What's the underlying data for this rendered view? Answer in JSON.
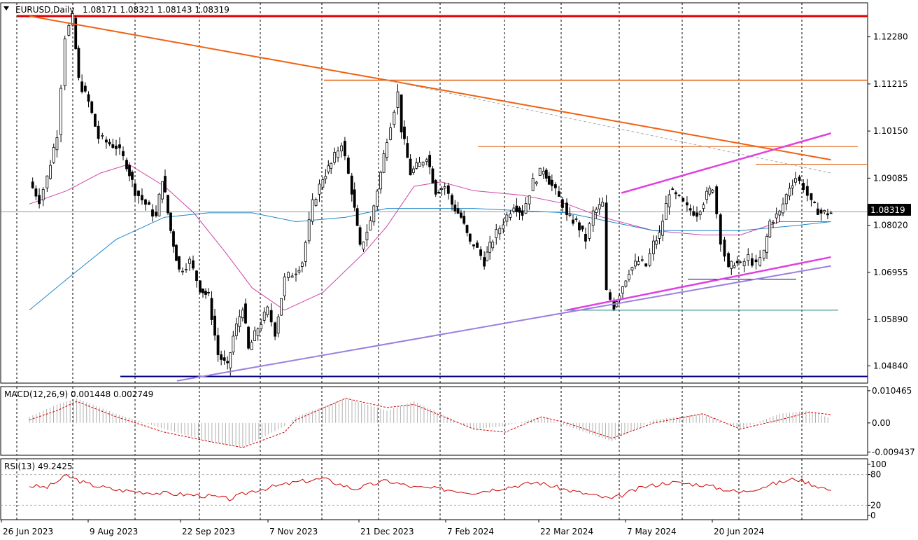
{
  "chart_data": [
    {
      "type": "candlestick",
      "panel": "price",
      "symbol": "EURUSD,Daily",
      "ohlc_header": "1.08171 1.08321 1.08143 1.08319",
      "current_price": "1.08319",
      "y_ticks": [
        "1.12280",
        "1.11215",
        "1.10150",
        "1.09085",
        "1.08020",
        "1.06955",
        "1.05890",
        "1.04840"
      ],
      "ylim": [
        1.0445,
        1.1305
      ],
      "x_labels": [
        "26 Jun 2023",
        "9 Aug 2023",
        "22 Sep 2023",
        "7 Nov 2023",
        "21 Dec 2023",
        "7 Feb 2024",
        "22 Mar 2024",
        "7 May 2024",
        "20 Jun 2024"
      ],
      "grid": "vertical dashed",
      "path_points": [
        [
          "26 Jun 2023",
          1.09
        ],
        [
          "1 Jul 2023",
          1.086
        ],
        [
          "5 Jul 2023",
          1.091
        ],
        [
          "10 Jul 2023",
          1.101
        ],
        [
          "14 Jul 2023",
          1.123
        ],
        [
          "18 Jul 2023",
          1.127
        ],
        [
          "21 Jul 2023",
          1.113
        ],
        [
          "26 Jul 2023",
          1.108
        ],
        [
          "31 Jul 2023",
          1.1
        ],
        [
          "4 Aug 2023",
          1.099
        ],
        [
          "9 Aug 2023",
          1.098
        ],
        [
          "14 Aug 2023",
          1.094
        ],
        [
          "18 Aug 2023",
          1.088
        ],
        [
          "23 Aug 2023",
          1.085
        ],
        [
          "28 Aug 2023",
          1.082
        ],
        [
          "31 Aug 2023",
          1.091
        ],
        [
          "4 Sep 2023",
          1.079
        ],
        [
          "8 Sep 2023",
          1.07
        ],
        [
          "13 Sep 2023",
          1.072
        ],
        [
          "18 Sep 2023",
          1.066
        ],
        [
          "22 Sep 2023",
          1.064
        ],
        [
          "27 Sep 2023",
          1.051
        ],
        [
          "2 Oct 2023",
          1.048
        ],
        [
          "5 Oct 2023",
          1.055
        ],
        [
          "10 Oct 2023",
          1.062
        ],
        [
          "13 Oct 2023",
          1.052
        ],
        [
          "18 Oct 2023",
          1.057
        ],
        [
          "23 Oct 2023",
          1.061
        ],
        [
          "27 Oct 2023",
          1.056
        ],
        [
          "1 Nov 2023",
          1.068
        ],
        [
          "7 Nov 2023",
          1.07
        ],
        [
          "10 Nov 2023",
          1.072
        ],
        [
          "15 Nov 2023",
          1.085
        ],
        [
          "20 Nov 2023",
          1.091
        ],
        [
          "24 Nov 2023",
          1.094
        ],
        [
          "29 Nov 2023",
          1.099
        ],
        [
          "4 Dec 2023",
          1.088
        ],
        [
          "8 Dec 2023",
          1.075
        ],
        [
          "13 Dec 2023",
          1.081
        ],
        [
          "18 Dec 2023",
          1.092
        ],
        [
          "21 Dec 2023",
          1.1
        ],
        [
          "27 Dec 2023",
          1.11
        ],
        [
          "29 Dec 2023",
          1.102
        ],
        [
          "3 Jan 2024",
          1.092
        ],
        [
          "8 Jan 2024",
          1.094
        ],
        [
          "12 Jan 2024",
          1.096
        ],
        [
          "17 Jan 2024",
          1.088
        ],
        [
          "22 Jan 2024",
          1.089
        ],
        [
          "26 Jan 2024",
          1.085
        ],
        [
          "31 Jan 2024",
          1.082
        ],
        [
          "5 Feb 2024",
          1.076
        ],
        [
          "7 Feb 2024",
          1.076
        ],
        [
          "12 Feb 2024",
          1.072
        ],
        [
          "16 Feb 2024",
          1.077
        ],
        [
          "21 Feb 2024",
          1.081
        ],
        [
          "26 Feb 2024",
          1.085
        ],
        [
          "1 Mar 2024",
          1.083
        ],
        [
          "6 Mar 2024",
          1.09
        ],
        [
          "11 Mar 2024",
          1.093
        ],
        [
          "15 Mar 2024",
          1.089
        ],
        [
          "20 Mar 2024",
          1.085
        ],
        [
          "22 Mar 2024",
          1.082
        ],
        [
          "27 Mar 2024",
          1.081
        ],
        [
          "1 Apr 2024",
          1.077
        ],
        [
          "5 Apr 2024",
          1.083
        ],
        [
          "10 Apr 2024",
          1.085
        ],
        [
          "12 Apr 2024",
          1.065
        ],
        [
          "16 Apr 2024",
          1.062
        ],
        [
          "19 Apr 2024",
          1.065
        ],
        [
          "24 Apr 2024",
          1.07
        ],
        [
          "29 Apr 2024",
          1.072
        ],
        [
          "3 May 2024",
          1.071
        ],
        [
          "7 May 2024",
          1.076
        ],
        [
          "10 May 2024",
          1.078
        ],
        [
          "15 May 2024",
          1.088
        ],
        [
          "20 May 2024",
          1.086
        ],
        [
          "24 May 2024",
          1.084
        ],
        [
          "29 May 2024",
          1.083
        ],
        [
          "3 Jun 2024",
          1.087
        ],
        [
          "6 Jun 2024",
          1.089
        ],
        [
          "10 Jun 2024",
          1.077
        ],
        [
          "14 Jun 2024",
          1.07
        ],
        [
          "17 Jun 2024",
          1.072
        ],
        [
          "20 Jun 2024",
          1.071
        ],
        [
          "24 Jun 2024",
          1.073
        ],
        [
          "28 Jun 2024",
          1.071
        ],
        [
          "2 Jul 2024",
          1.074
        ],
        [
          "5 Jul 2024",
          1.081
        ],
        [
          "10 Jul 2024",
          1.083
        ],
        [
          "15 Jul 2024",
          1.089
        ],
        [
          "18 Jul 2024",
          1.091
        ],
        [
          "22 Jul 2024",
          1.089
        ],
        [
          "26 Jul 2024",
          1.085
        ],
        [
          "31 Jul 2024",
          1.083
        ],
        [
          "5 Aug 2024",
          1.083
        ]
      ],
      "moving_averages": [
        {
          "color": "#cc44aa",
          "points": [
            [
              "26 Jun 2023",
              1.085
            ],
            [
              "15 Jul 2023",
              1.088
            ],
            [
              "1 Aug 2023",
              1.092
            ],
            [
              "15 Aug 2023",
              1.094
            ],
            [
              "1 Sep 2023",
              1.089
            ],
            [
              "15 Sep 2023",
              1.083
            ],
            [
              "1 Oct 2023",
              1.074
            ],
            [
              "15 Oct 2023",
              1.066
            ],
            [
              "1 Nov 2023",
              1.061
            ],
            [
              "20 Nov 2023",
              1.065
            ],
            [
              "10 Dec 2023",
              1.074
            ],
            [
              "21 Dec 2023",
              1.08
            ],
            [
              "5 Jan 2024",
              1.089
            ],
            [
              "20 Jan 2024",
              1.09
            ],
            [
              "7 Feb 2024",
              1.088
            ],
            [
              "1 Mar 2024",
              1.087
            ],
            [
              "22 Mar 2024",
              1.085
            ],
            [
              "10 Apr 2024",
              1.082
            ],
            [
              "7 May 2024",
              1.079
            ],
            [
              "1 Jun 2024",
              1.078
            ],
            [
              "20 Jun 2024",
              1.078
            ],
            [
              "10 Jul 2024",
              1.081
            ],
            [
              "5 Aug 2024",
              1.081
            ]
          ]
        },
        {
          "color": "#1e88c8",
          "points": [
            [
              "26 Jun 2023",
              1.061
            ],
            [
              "15 Jul 2023",
              1.068
            ],
            [
              "9 Aug 2023",
              1.077
            ],
            [
              "1 Sep 2023",
              1.082
            ],
            [
              "22 Sep 2023",
              1.083
            ],
            [
              "15 Oct 2023",
              1.083
            ],
            [
              "7 Nov 2023",
              1.081
            ],
            [
              "1 Dec 2023",
              1.082
            ],
            [
              "21 Dec 2023",
              1.084
            ],
            [
              "7 Feb 2024",
              1.084
            ],
            [
              "22 Mar 2024",
              1.083
            ],
            [
              "7 May 2024",
              1.079
            ],
            [
              "20 Jun 2024",
              1.079
            ],
            [
              "15 Jul 2024",
              1.08
            ],
            [
              "5 Aug 2024",
              1.081
            ]
          ]
        }
      ],
      "levels": [
        {
          "color": "#e00000",
          "value": 1.1275
        },
        {
          "color": "#e06010",
          "value": 1.113
        },
        {
          "color": "#e06010",
          "value": 1.098
        },
        {
          "color": "#e06010",
          "value": 1.094
        },
        {
          "color": "#000080",
          "value": 1.046
        },
        {
          "color": "#1e8080",
          "value": 1.061
        },
        {
          "color": "#000080",
          "value": 1.068
        },
        {
          "color": "#5a7aa0",
          "value": 1.0832
        }
      ],
      "trendlines": [
        {
          "color": "#f06010",
          "from": [
            "26 Jun 2023",
            1.1275
          ],
          "to": [
            "5 Aug 2024",
            1.095
          ]
        },
        {
          "color": "#aaaaaa",
          "style": "dashed",
          "from": [
            "21 Dec 2023",
            1.113
          ],
          "to": [
            "5 Aug 2024",
            1.092
          ]
        },
        {
          "color": "#9a80e0",
          "from": [
            "7 Sep 2023",
            1.045
          ],
          "to": [
            "5 Aug 2024",
            1.071
          ]
        },
        {
          "color": "#e040e0",
          "from": [
            "22 Mar 2024",
            1.061
          ],
          "to": [
            "5 Aug 2024",
            1.073
          ]
        },
        {
          "color": "#e040e0",
          "from": [
            "20 Apr 2024",
            1.0875
          ],
          "to": [
            "5 Aug 2024",
            1.101
          ]
        }
      ]
    },
    {
      "type": "bar",
      "panel": "macd",
      "title": "MACD(12,26,9) 0.001448 0.002749",
      "y_ticks": [
        "0.010465",
        "0.00",
        "-0.009437"
      ],
      "ylim": [
        -0.0105,
        0.0118
      ],
      "histogram_points": [
        [
          "26 Jun 2023",
          0.002
        ],
        [
          "10 Jul 2023",
          0.006
        ],
        [
          "20 Jul 2023",
          0.008
        ],
        [
          "9 Aug 2023",
          0.003
        ],
        [
          "1 Sep 2023",
          -0.002
        ],
        [
          "22 Sep 2023",
          -0.006
        ],
        [
          "10 Oct 2023",
          -0.008
        ],
        [
          "1 Nov 2023",
          -0.001
        ],
        [
          "7 Nov 2023",
          0.002
        ],
        [
          "1 Dec 2023",
          0.008
        ],
        [
          "21 Dec 2023",
          0.004
        ],
        [
          "5 Jan 2024",
          0.007
        ],
        [
          "7 Feb 2024",
          -0.002
        ],
        [
          "22 Feb 2024",
          -0.001
        ],
        [
          "10 Mar 2024",
          0.002
        ],
        [
          "22 Mar 2024",
          -0.001
        ],
        [
          "15 Apr 2024",
          -0.006
        ],
        [
          "7 May 2024",
          0.001
        ],
        [
          "1 Jun 2024",
          0.003
        ],
        [
          "20 Jun 2024",
          -0.002
        ],
        [
          "10 Jul 2024",
          0.003
        ],
        [
          "25 Jul 2024",
          0.004
        ],
        [
          "5 Aug 2024",
          0.0014
        ]
      ],
      "signal_points": [
        [
          "26 Jun 2023",
          0.001
        ],
        [
          "10 Jul 2023",
          0.004
        ],
        [
          "20 Jul 2023",
          0.007
        ],
        [
          "9 Aug 2023",
          0.002
        ],
        [
          "1 Sep 2023",
          -0.003
        ],
        [
          "22 Sep 2023",
          -0.006
        ],
        [
          "10 Oct 2023",
          -0.008
        ],
        [
          "1 Nov 2023",
          -0.003
        ],
        [
          "7 Nov 2023",
          0.001
        ],
        [
          "1 Dec 2023",
          0.008
        ],
        [
          "21 Dec 2023",
          0.005
        ],
        [
          "5 Jan 2024",
          0.006
        ],
        [
          "7 Feb 2024",
          -0.002
        ],
        [
          "22 Feb 2024",
          -0.003
        ],
        [
          "10 Mar 2024",
          0.002
        ],
        [
          "22 Mar 2024",
          0.0
        ],
        [
          "15 Apr 2024",
          -0.005
        ],
        [
          "7 May 2024",
          0.0
        ],
        [
          "1 Jun 2024",
          0.003
        ],
        [
          "20 Jun 2024",
          -0.002
        ],
        [
          "10 Jul 2024",
          0.001
        ],
        [
          "25 Jul 2024",
          0.0035
        ],
        [
          "5 Aug 2024",
          0.0027
        ]
      ],
      "signal_color": "#d00000"
    },
    {
      "type": "line",
      "panel": "rsi",
      "title": "RSI(13) 49.2425",
      "y_ticks": [
        "100",
        "80",
        "20",
        "0"
      ],
      "ylim": [
        0,
        100
      ],
      "levels": [
        80,
        20
      ],
      "line_color": "#d00000",
      "points": [
        [
          "26 Jun 2023",
          58
        ],
        [
          "5 Jul 2023",
          55
        ],
        [
          "15 Jul 2023",
          78
        ],
        [
          "25 Jul 2023",
          62
        ],
        [
          "9 Aug 2023",
          50
        ],
        [
          "25 Aug 2023",
          45
        ],
        [
          "15 Sep 2023",
          40
        ],
        [
          "22 Sep 2023",
          38
        ],
        [
          "3 Oct 2023",
          32
        ],
        [
          "15 Oct 2023",
          48
        ],
        [
          "7 Nov 2023",
          65
        ],
        [
          "20 Nov 2023",
          72
        ],
        [
          "5 Dec 2023",
          52
        ],
        [
          "21 Dec 2023",
          68
        ],
        [
          "5 Jan 2024",
          55
        ],
        [
          "20 Jan 2024",
          52
        ],
        [
          "7 Feb 2024",
          45
        ],
        [
          "22 Feb 2024",
          55
        ],
        [
          "8 Mar 2024",
          65
        ],
        [
          "22 Mar 2024",
          50
        ],
        [
          "15 Apr 2024",
          32
        ],
        [
          "1 May 2024",
          55
        ],
        [
          "15 May 2024",
          65
        ],
        [
          "1 Jun 2024",
          60
        ],
        [
          "20 Jun 2024",
          45
        ],
        [
          "5 Jul 2024",
          60
        ],
        [
          "18 Jul 2024",
          72
        ],
        [
          "5 Aug 2024",
          49
        ]
      ]
    }
  ]
}
